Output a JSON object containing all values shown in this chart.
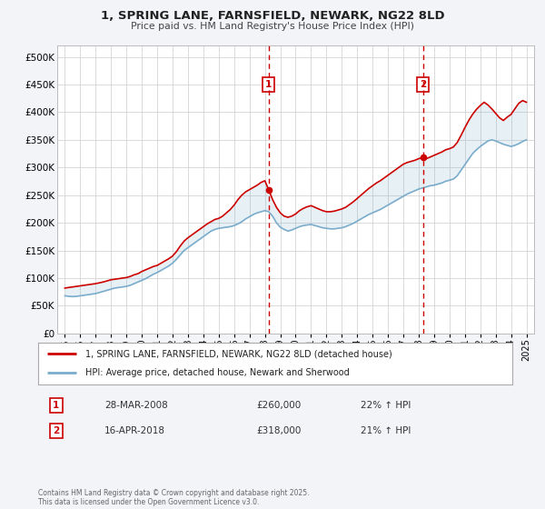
{
  "title": "1, SPRING LANE, FARNSFIELD, NEWARK, NG22 8LD",
  "subtitle": "Price paid vs. HM Land Registry's House Price Index (HPI)",
  "background_color": "#f2f4f8",
  "plot_bg_color": "#ffffff",
  "sale1_date": 2008.24,
  "sale1_price": 260000,
  "sale1_label": "1",
  "sale2_date": 2018.29,
  "sale2_price": 318000,
  "sale2_label": "2",
  "property_line_color": "#cc0000",
  "hpi_line_color": "#7aaccc",
  "vline_color": "#cc0000",
  "legend_label_property": "1, SPRING LANE, FARNSFIELD, NEWARK, NG22 8LD (detached house)",
  "legend_label_hpi": "HPI: Average price, detached house, Newark and Sherwood",
  "footnote": "Contains HM Land Registry data © Crown copyright and database right 2025.\nThis data is licensed under the Open Government Licence v3.0.",
  "xlim": [
    1994.5,
    2025.5
  ],
  "ylim": [
    0,
    520000
  ],
  "yticks": [
    0,
    50000,
    100000,
    150000,
    200000,
    250000,
    300000,
    350000,
    400000,
    450000,
    500000
  ],
  "xticks": [
    1995,
    1996,
    1997,
    1998,
    1999,
    2000,
    2001,
    2002,
    2003,
    2004,
    2005,
    2006,
    2007,
    2008,
    2009,
    2010,
    2011,
    2012,
    2013,
    2014,
    2015,
    2016,
    2017,
    2018,
    2019,
    2020,
    2021,
    2022,
    2023,
    2024,
    2025
  ],
  "hpi_data": [
    [
      1995.0,
      68000
    ],
    [
      1995.25,
      67000
    ],
    [
      1995.5,
      66500
    ],
    [
      1995.75,
      67000
    ],
    [
      1996.0,
      68000
    ],
    [
      1996.25,
      69000
    ],
    [
      1996.5,
      70000
    ],
    [
      1996.75,
      71000
    ],
    [
      1997.0,
      72000
    ],
    [
      1997.25,
      74000
    ],
    [
      1997.5,
      76000
    ],
    [
      1997.75,
      78000
    ],
    [
      1998.0,
      80000
    ],
    [
      1998.25,
      82000
    ],
    [
      1998.5,
      83000
    ],
    [
      1998.75,
      84000
    ],
    [
      1999.0,
      85000
    ],
    [
      1999.25,
      87000
    ],
    [
      1999.5,
      90000
    ],
    [
      1999.75,
      93000
    ],
    [
      2000.0,
      96000
    ],
    [
      2000.25,
      99000
    ],
    [
      2000.5,
      103000
    ],
    [
      2000.75,
      107000
    ],
    [
      2001.0,
      110000
    ],
    [
      2001.25,
      114000
    ],
    [
      2001.5,
      118000
    ],
    [
      2001.75,
      122000
    ],
    [
      2002.0,
      127000
    ],
    [
      2002.25,
      134000
    ],
    [
      2002.5,
      142000
    ],
    [
      2002.75,
      150000
    ],
    [
      2003.0,
      155000
    ],
    [
      2003.25,
      160000
    ],
    [
      2003.5,
      165000
    ],
    [
      2003.75,
      170000
    ],
    [
      2004.0,
      175000
    ],
    [
      2004.25,
      180000
    ],
    [
      2004.5,
      185000
    ],
    [
      2004.75,
      188000
    ],
    [
      2005.0,
      190000
    ],
    [
      2005.25,
      191000
    ],
    [
      2005.5,
      192000
    ],
    [
      2005.75,
      193000
    ],
    [
      2006.0,
      195000
    ],
    [
      2006.25,
      198000
    ],
    [
      2006.5,
      202000
    ],
    [
      2006.75,
      207000
    ],
    [
      2007.0,
      211000
    ],
    [
      2007.25,
      215000
    ],
    [
      2007.5,
      218000
    ],
    [
      2007.75,
      220000
    ],
    [
      2008.0,
      222000
    ],
    [
      2008.25,
      220000
    ],
    [
      2008.5,
      212000
    ],
    [
      2008.75,
      200000
    ],
    [
      2009.0,
      192000
    ],
    [
      2009.25,
      188000
    ],
    [
      2009.5,
      185000
    ],
    [
      2009.75,
      187000
    ],
    [
      2010.0,
      190000
    ],
    [
      2010.25,
      193000
    ],
    [
      2010.5,
      195000
    ],
    [
      2010.75,
      196000
    ],
    [
      2011.0,
      197000
    ],
    [
      2011.25,
      195000
    ],
    [
      2011.5,
      193000
    ],
    [
      2011.75,
      191000
    ],
    [
      2012.0,
      190000
    ],
    [
      2012.25,
      189000
    ],
    [
      2012.5,
      189000
    ],
    [
      2012.75,
      190000
    ],
    [
      2013.0,
      191000
    ],
    [
      2013.25,
      193000
    ],
    [
      2013.5,
      196000
    ],
    [
      2013.75,
      199000
    ],
    [
      2014.0,
      203000
    ],
    [
      2014.25,
      207000
    ],
    [
      2014.5,
      211000
    ],
    [
      2014.75,
      215000
    ],
    [
      2015.0,
      218000
    ],
    [
      2015.25,
      221000
    ],
    [
      2015.5,
      224000
    ],
    [
      2015.75,
      228000
    ],
    [
      2016.0,
      232000
    ],
    [
      2016.25,
      236000
    ],
    [
      2016.5,
      240000
    ],
    [
      2016.75,
      244000
    ],
    [
      2017.0,
      248000
    ],
    [
      2017.25,
      252000
    ],
    [
      2017.5,
      255000
    ],
    [
      2017.75,
      258000
    ],
    [
      2018.0,
      261000
    ],
    [
      2018.25,
      263000
    ],
    [
      2018.5,
      265000
    ],
    [
      2018.75,
      267000
    ],
    [
      2019.0,
      268000
    ],
    [
      2019.25,
      270000
    ],
    [
      2019.5,
      272000
    ],
    [
      2019.75,
      275000
    ],
    [
      2020.0,
      277000
    ],
    [
      2020.25,
      279000
    ],
    [
      2020.5,
      285000
    ],
    [
      2020.75,
      295000
    ],
    [
      2021.0,
      305000
    ],
    [
      2021.25,
      315000
    ],
    [
      2021.5,
      325000
    ],
    [
      2021.75,
      332000
    ],
    [
      2022.0,
      338000
    ],
    [
      2022.25,
      343000
    ],
    [
      2022.5,
      348000
    ],
    [
      2022.75,
      350000
    ],
    [
      2023.0,
      348000
    ],
    [
      2023.25,
      345000
    ],
    [
      2023.5,
      342000
    ],
    [
      2023.75,
      340000
    ],
    [
      2024.0,
      338000
    ],
    [
      2024.25,
      340000
    ],
    [
      2024.5,
      343000
    ],
    [
      2024.75,
      347000
    ],
    [
      2025.0,
      350000
    ]
  ],
  "property_data": [
    [
      1995.0,
      82000
    ],
    [
      1995.25,
      83000
    ],
    [
      1995.5,
      84000
    ],
    [
      1995.75,
      85000
    ],
    [
      1996.0,
      86000
    ],
    [
      1996.25,
      87000
    ],
    [
      1996.5,
      88000
    ],
    [
      1996.75,
      89000
    ],
    [
      1997.0,
      90000
    ],
    [
      1997.25,
      91500
    ],
    [
      1997.5,
      93000
    ],
    [
      1997.75,
      95000
    ],
    [
      1998.0,
      97000
    ],
    [
      1998.25,
      98000
    ],
    [
      1998.5,
      99000
    ],
    [
      1998.75,
      100000
    ],
    [
      1999.0,
      101000
    ],
    [
      1999.25,
      103000
    ],
    [
      1999.5,
      106000
    ],
    [
      1999.75,
      108000
    ],
    [
      2000.0,
      112000
    ],
    [
      2000.25,
      115000
    ],
    [
      2000.5,
      118000
    ],
    [
      2000.75,
      121000
    ],
    [
      2001.0,
      123000
    ],
    [
      2001.25,
      127000
    ],
    [
      2001.5,
      131000
    ],
    [
      2001.75,
      135000
    ],
    [
      2002.0,
      140000
    ],
    [
      2002.25,
      148000
    ],
    [
      2002.5,
      158000
    ],
    [
      2002.75,
      167000
    ],
    [
      2003.0,
      173000
    ],
    [
      2003.25,
      178000
    ],
    [
      2003.5,
      183000
    ],
    [
      2003.75,
      188000
    ],
    [
      2004.0,
      193000
    ],
    [
      2004.25,
      198000
    ],
    [
      2004.5,
      202000
    ],
    [
      2004.75,
      206000
    ],
    [
      2005.0,
      208000
    ],
    [
      2005.25,
      212000
    ],
    [
      2005.5,
      218000
    ],
    [
      2005.75,
      224000
    ],
    [
      2006.0,
      232000
    ],
    [
      2006.25,
      242000
    ],
    [
      2006.5,
      250000
    ],
    [
      2006.75,
      256000
    ],
    [
      2007.0,
      260000
    ],
    [
      2007.25,
      264000
    ],
    [
      2007.5,
      268000
    ],
    [
      2007.75,
      273000
    ],
    [
      2008.0,
      276000
    ],
    [
      2008.24,
      260000
    ],
    [
      2008.5,
      242000
    ],
    [
      2008.75,
      228000
    ],
    [
      2009.0,
      218000
    ],
    [
      2009.25,
      212000
    ],
    [
      2009.5,
      210000
    ],
    [
      2009.75,
      212000
    ],
    [
      2010.0,
      216000
    ],
    [
      2010.25,
      222000
    ],
    [
      2010.5,
      226000
    ],
    [
      2010.75,
      229000
    ],
    [
      2011.0,
      231000
    ],
    [
      2011.25,
      228000
    ],
    [
      2011.5,
      225000
    ],
    [
      2011.75,
      222000
    ],
    [
      2012.0,
      220000
    ],
    [
      2012.25,
      220000
    ],
    [
      2012.5,
      221000
    ],
    [
      2012.75,
      223000
    ],
    [
      2013.0,
      225000
    ],
    [
      2013.25,
      228000
    ],
    [
      2013.5,
      233000
    ],
    [
      2013.75,
      238000
    ],
    [
      2014.0,
      244000
    ],
    [
      2014.25,
      250000
    ],
    [
      2014.5,
      256000
    ],
    [
      2014.75,
      262000
    ],
    [
      2015.0,
      267000
    ],
    [
      2015.25,
      272000
    ],
    [
      2015.5,
      276000
    ],
    [
      2015.75,
      281000
    ],
    [
      2016.0,
      286000
    ],
    [
      2016.25,
      291000
    ],
    [
      2016.5,
      296000
    ],
    [
      2016.75,
      301000
    ],
    [
      2017.0,
      306000
    ],
    [
      2017.25,
      309000
    ],
    [
      2017.5,
      311000
    ],
    [
      2017.75,
      313000
    ],
    [
      2018.0,
      316000
    ],
    [
      2018.29,
      318000
    ],
    [
      2018.5,
      316000
    ],
    [
      2018.75,
      319000
    ],
    [
      2019.0,
      322000
    ],
    [
      2019.25,
      325000
    ],
    [
      2019.5,
      328000
    ],
    [
      2019.75,
      332000
    ],
    [
      2020.0,
      334000
    ],
    [
      2020.25,
      337000
    ],
    [
      2020.5,
      345000
    ],
    [
      2020.75,
      358000
    ],
    [
      2021.0,
      372000
    ],
    [
      2021.25,
      385000
    ],
    [
      2021.5,
      396000
    ],
    [
      2021.75,
      405000
    ],
    [
      2022.0,
      412000
    ],
    [
      2022.25,
      418000
    ],
    [
      2022.5,
      413000
    ],
    [
      2022.75,
      406000
    ],
    [
      2023.0,
      398000
    ],
    [
      2023.25,
      390000
    ],
    [
      2023.5,
      385000
    ],
    [
      2023.75,
      391000
    ],
    [
      2024.0,
      396000
    ],
    [
      2024.25,
      406000
    ],
    [
      2024.5,
      416000
    ],
    [
      2024.75,
      421000
    ],
    [
      2025.0,
      418000
    ]
  ]
}
